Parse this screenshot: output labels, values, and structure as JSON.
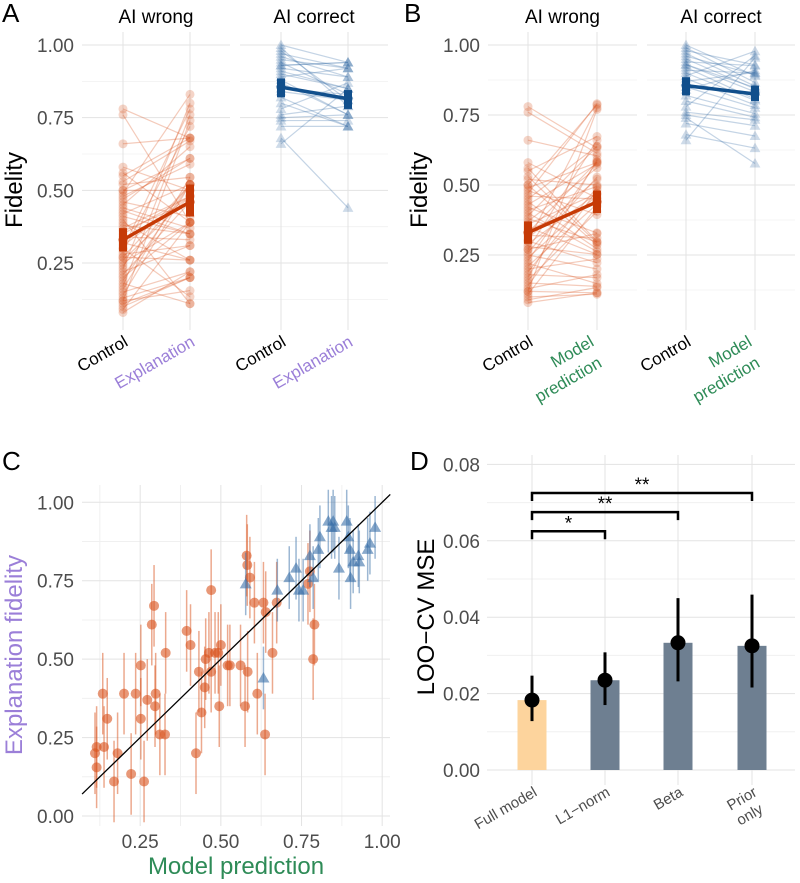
{
  "colors": {
    "ai_wrong": "#d9541e",
    "ai_wrong_summary": "#c63a06",
    "ai_correct": "#3a6fa8",
    "ai_correct_summary": "#114f8c",
    "explanation_label": "#9b7fd8",
    "model_prediction_label": "#2e8b57",
    "full_model_bar": "#fdd49d",
    "other_bar": "#6e7f91"
  },
  "chart_data": [
    {
      "panel": "A",
      "type": "line",
      "ylabel": "Fidelity",
      "ylim": [
        0.05,
        1.03
      ],
      "yticks": [
        "1.00",
        "0.75",
        "0.50",
        "0.25"
      ],
      "grid": true,
      "facets": [
        {
          "title": "AI wrong",
          "categories": [
            "Control",
            "Explanation"
          ],
          "marker": "circle",
          "pairs_from": "wrong",
          "second": "explanation",
          "summary": [
            {
              "mean": 0.33,
              "lo": 0.29,
              "hi": 0.37
            },
            {
              "mean": 0.46,
              "lo": 0.41,
              "hi": 0.52
            }
          ]
        },
        {
          "title": "AI correct",
          "categories": [
            "Control",
            "Explanation"
          ],
          "marker": "triangle",
          "pairs_from": "correct",
          "second": "explanation",
          "summary": [
            {
              "mean": 0.855,
              "lo": 0.82,
              "hi": 0.885
            },
            {
              "mean": 0.815,
              "lo": 0.78,
              "hi": 0.845
            }
          ]
        }
      ]
    },
    {
      "panel": "B",
      "type": "line",
      "ylabel": "Fidelity",
      "ylim": [
        0.05,
        1.03
      ],
      "yticks": [
        "1.00",
        "0.75",
        "0.50",
        "0.25"
      ],
      "grid": true,
      "facets": [
        {
          "title": "AI wrong",
          "categories": [
            "Control",
            "Model prediction"
          ],
          "category_lines": [
            [
              "Control"
            ],
            [
              "Model",
              "prediction"
            ]
          ],
          "marker": "circle",
          "pairs_from": "wrong",
          "second": "prediction",
          "summary": [
            {
              "mean": 0.33,
              "lo": 0.29,
              "hi": 0.37
            },
            {
              "mean": 0.44,
              "lo": 0.4,
              "hi": 0.48
            }
          ]
        },
        {
          "title": "AI correct",
          "categories": [
            "Control",
            "Model prediction"
          ],
          "category_lines": [
            [
              "Control"
            ],
            [
              "Model",
              "prediction"
            ]
          ],
          "marker": "triangle",
          "pairs_from": "correct",
          "second": "prediction",
          "summary": [
            {
              "mean": 0.855,
              "lo": 0.82,
              "hi": 0.885
            },
            {
              "mean": 0.825,
              "lo": 0.8,
              "hi": 0.855
            }
          ]
        }
      ]
    },
    {
      "panel": "C",
      "type": "scatter",
      "xlabel": "Model prediction",
      "ylabel": "Explanation fidelity",
      "xlim": [
        0.07,
        1.025
      ],
      "ylim": [
        -0.03,
        1.05
      ],
      "xticks": [
        "0.25",
        "0.50",
        "0.75",
        "1.00"
      ],
      "yticks": [
        "0.00",
        "0.25",
        "0.50",
        "0.75",
        "1.00"
      ],
      "reference_line": "y = x",
      "grid": true,
      "error_bar_halfwidth": {
        "wrong": 0.13,
        "correct": 0.1
      },
      "series": [
        {
          "group": "wrong",
          "marker": "circle",
          "points": [
            [
              0.11,
              0.2
            ],
            [
              0.115,
              0.22
            ],
            [
              0.115,
              0.155
            ],
            [
              0.138,
              0.22
            ],
            [
              0.134,
              0.39
            ],
            [
              0.148,
              0.31
            ],
            [
              0.169,
              0.11
            ],
            [
              0.18,
              0.2
            ],
            [
              0.2,
              0.39
            ],
            [
              0.222,
              0.134
            ],
            [
              0.236,
              0.39
            ],
            [
              0.252,
              0.48
            ],
            [
              0.252,
              0.31
            ],
            [
              0.262,
              0.11
            ],
            [
              0.272,
              0.37
            ],
            [
              0.286,
              0.61
            ],
            [
              0.293,
              0.67
            ],
            [
              0.298,
              0.39
            ],
            [
              0.296,
              0.35
            ],
            [
              0.311,
              0.26
            ],
            [
              0.327,
              0.26
            ],
            [
              0.329,
              0.52
            ],
            [
              0.394,
              0.59
            ],
            [
              0.406,
              0.545
            ],
            [
              0.423,
              0.2
            ],
            [
              0.432,
              0.46
            ],
            [
              0.44,
              0.33
            ],
            [
              0.45,
              0.41
            ],
            [
              0.453,
              0.5
            ],
            [
              0.463,
              0.52
            ],
            [
              0.47,
              0.46
            ],
            [
              0.47,
              0.72
            ],
            [
              0.482,
              0.52
            ],
            [
              0.492,
              0.52
            ],
            [
              0.495,
              0.35
            ],
            [
              0.5,
              0.545
            ],
            [
              0.521,
              0.48
            ],
            [
              0.528,
              0.48
            ],
            [
              0.561,
              0.48
            ],
            [
              0.575,
              0.35
            ],
            [
              0.58,
              0.83
            ],
            [
              0.582,
              0.8
            ],
            [
              0.583,
              0.46
            ],
            [
              0.59,
              0.76
            ],
            [
              0.604,
              0.68
            ],
            [
              0.613,
              0.39
            ],
            [
              0.632,
              0.68
            ],
            [
              0.637,
              0.26
            ],
            [
              0.639,
              0.65
            ],
            [
              0.66,
              0.52
            ],
            [
              0.673,
              0.68
            ],
            [
              0.77,
              0.74
            ],
            [
              0.776,
              0.78
            ],
            [
              0.79,
              0.61
            ],
            [
              0.786,
              0.5
            ]
          ]
        },
        {
          "group": "correct",
          "marker": "triangle",
          "points": [
            [
              0.577,
              0.74
            ],
            [
              0.632,
              0.44
            ],
            [
              0.675,
              0.72
            ],
            [
              0.712,
              0.76
            ],
            [
              0.733,
              0.79
            ],
            [
              0.742,
              0.72
            ],
            [
              0.755,
              0.72
            ],
            [
              0.776,
              0.83
            ],
            [
              0.786,
              0.76
            ],
            [
              0.802,
              0.85
            ],
            [
              0.807,
              0.89
            ],
            [
              0.833,
              0.94
            ],
            [
              0.843,
              0.92
            ],
            [
              0.853,
              0.92
            ],
            [
              0.866,
              0.79
            ],
            [
              0.89,
              0.94
            ],
            [
              0.895,
              0.89
            ],
            [
              0.9,
              0.85
            ],
            [
              0.902,
              0.76
            ],
            [
              0.91,
              0.81
            ],
            [
              0.926,
              0.83
            ],
            [
              0.929,
              0.81
            ],
            [
              0.955,
              0.85
            ],
            [
              0.962,
              0.87
            ],
            [
              0.978,
              0.92
            ],
            [
              0.848,
              0.94
            ]
          ]
        }
      ]
    },
    {
      "panel": "D",
      "type": "bar",
      "ylabel": "LOO−CV MSE",
      "ylim": [
        0,
        0.08
      ],
      "yticks": [
        "0.00",
        "0.02",
        "0.04",
        "0.06",
        "0.08"
      ],
      "grid": true,
      "categories": [
        "Full model",
        "L1−norm",
        "Beta",
        "Prior only"
      ],
      "category_lines": [
        [
          "Full model"
        ],
        [
          "L1−norm"
        ],
        [
          "Beta"
        ],
        [
          "Prior",
          "only"
        ]
      ],
      "values": [
        0.0183,
        0.0235,
        0.0333,
        0.0325
      ],
      "ci_low": [
        0.0128,
        0.017,
        0.0232,
        0.0216
      ],
      "ci_high": [
        0.0247,
        0.0308,
        0.045,
        0.0459
      ],
      "significance": [
        {
          "from": "Full model",
          "to": "L1−norm",
          "level": 0.0625,
          "label": "*"
        },
        {
          "from": "Full model",
          "to": "Beta",
          "level": 0.0675,
          "label": "**"
        },
        {
          "from": "Full model",
          "to": "Prior only",
          "level": 0.0725,
          "label": "**"
        }
      ]
    }
  ],
  "control_values": {
    "wrong": [
      0.1,
      0.08,
      0.12,
      0.15,
      0.09,
      0.22,
      0.18,
      0.13,
      0.25,
      0.3,
      0.2,
      0.35,
      0.28,
      0.4,
      0.44,
      0.5,
      0.53,
      0.56,
      0.38,
      0.32,
      0.27,
      0.42,
      0.48,
      0.16,
      0.11,
      0.21,
      0.34,
      0.46,
      0.58,
      0.24,
      0.36,
      0.29,
      0.14,
      0.19,
      0.41,
      0.52,
      0.31,
      0.26,
      0.37,
      0.43,
      0.49,
      0.23,
      0.33,
      0.17,
      0.66,
      0.76,
      0.78,
      0.39,
      0.45,
      0.27,
      0.55,
      0.12,
      0.3,
      0.47,
      0.5
    ],
    "correct": [
      0.74,
      0.68,
      0.72,
      0.75,
      0.76,
      0.8,
      0.82,
      0.85,
      0.88,
      0.9,
      0.92,
      0.93,
      0.95,
      0.97,
      0.99,
      1.0,
      0.96,
      0.91,
      0.87,
      0.84,
      0.94,
      0.98,
      0.66,
      0.78,
      0.89,
      0.93
    ]
  }
}
